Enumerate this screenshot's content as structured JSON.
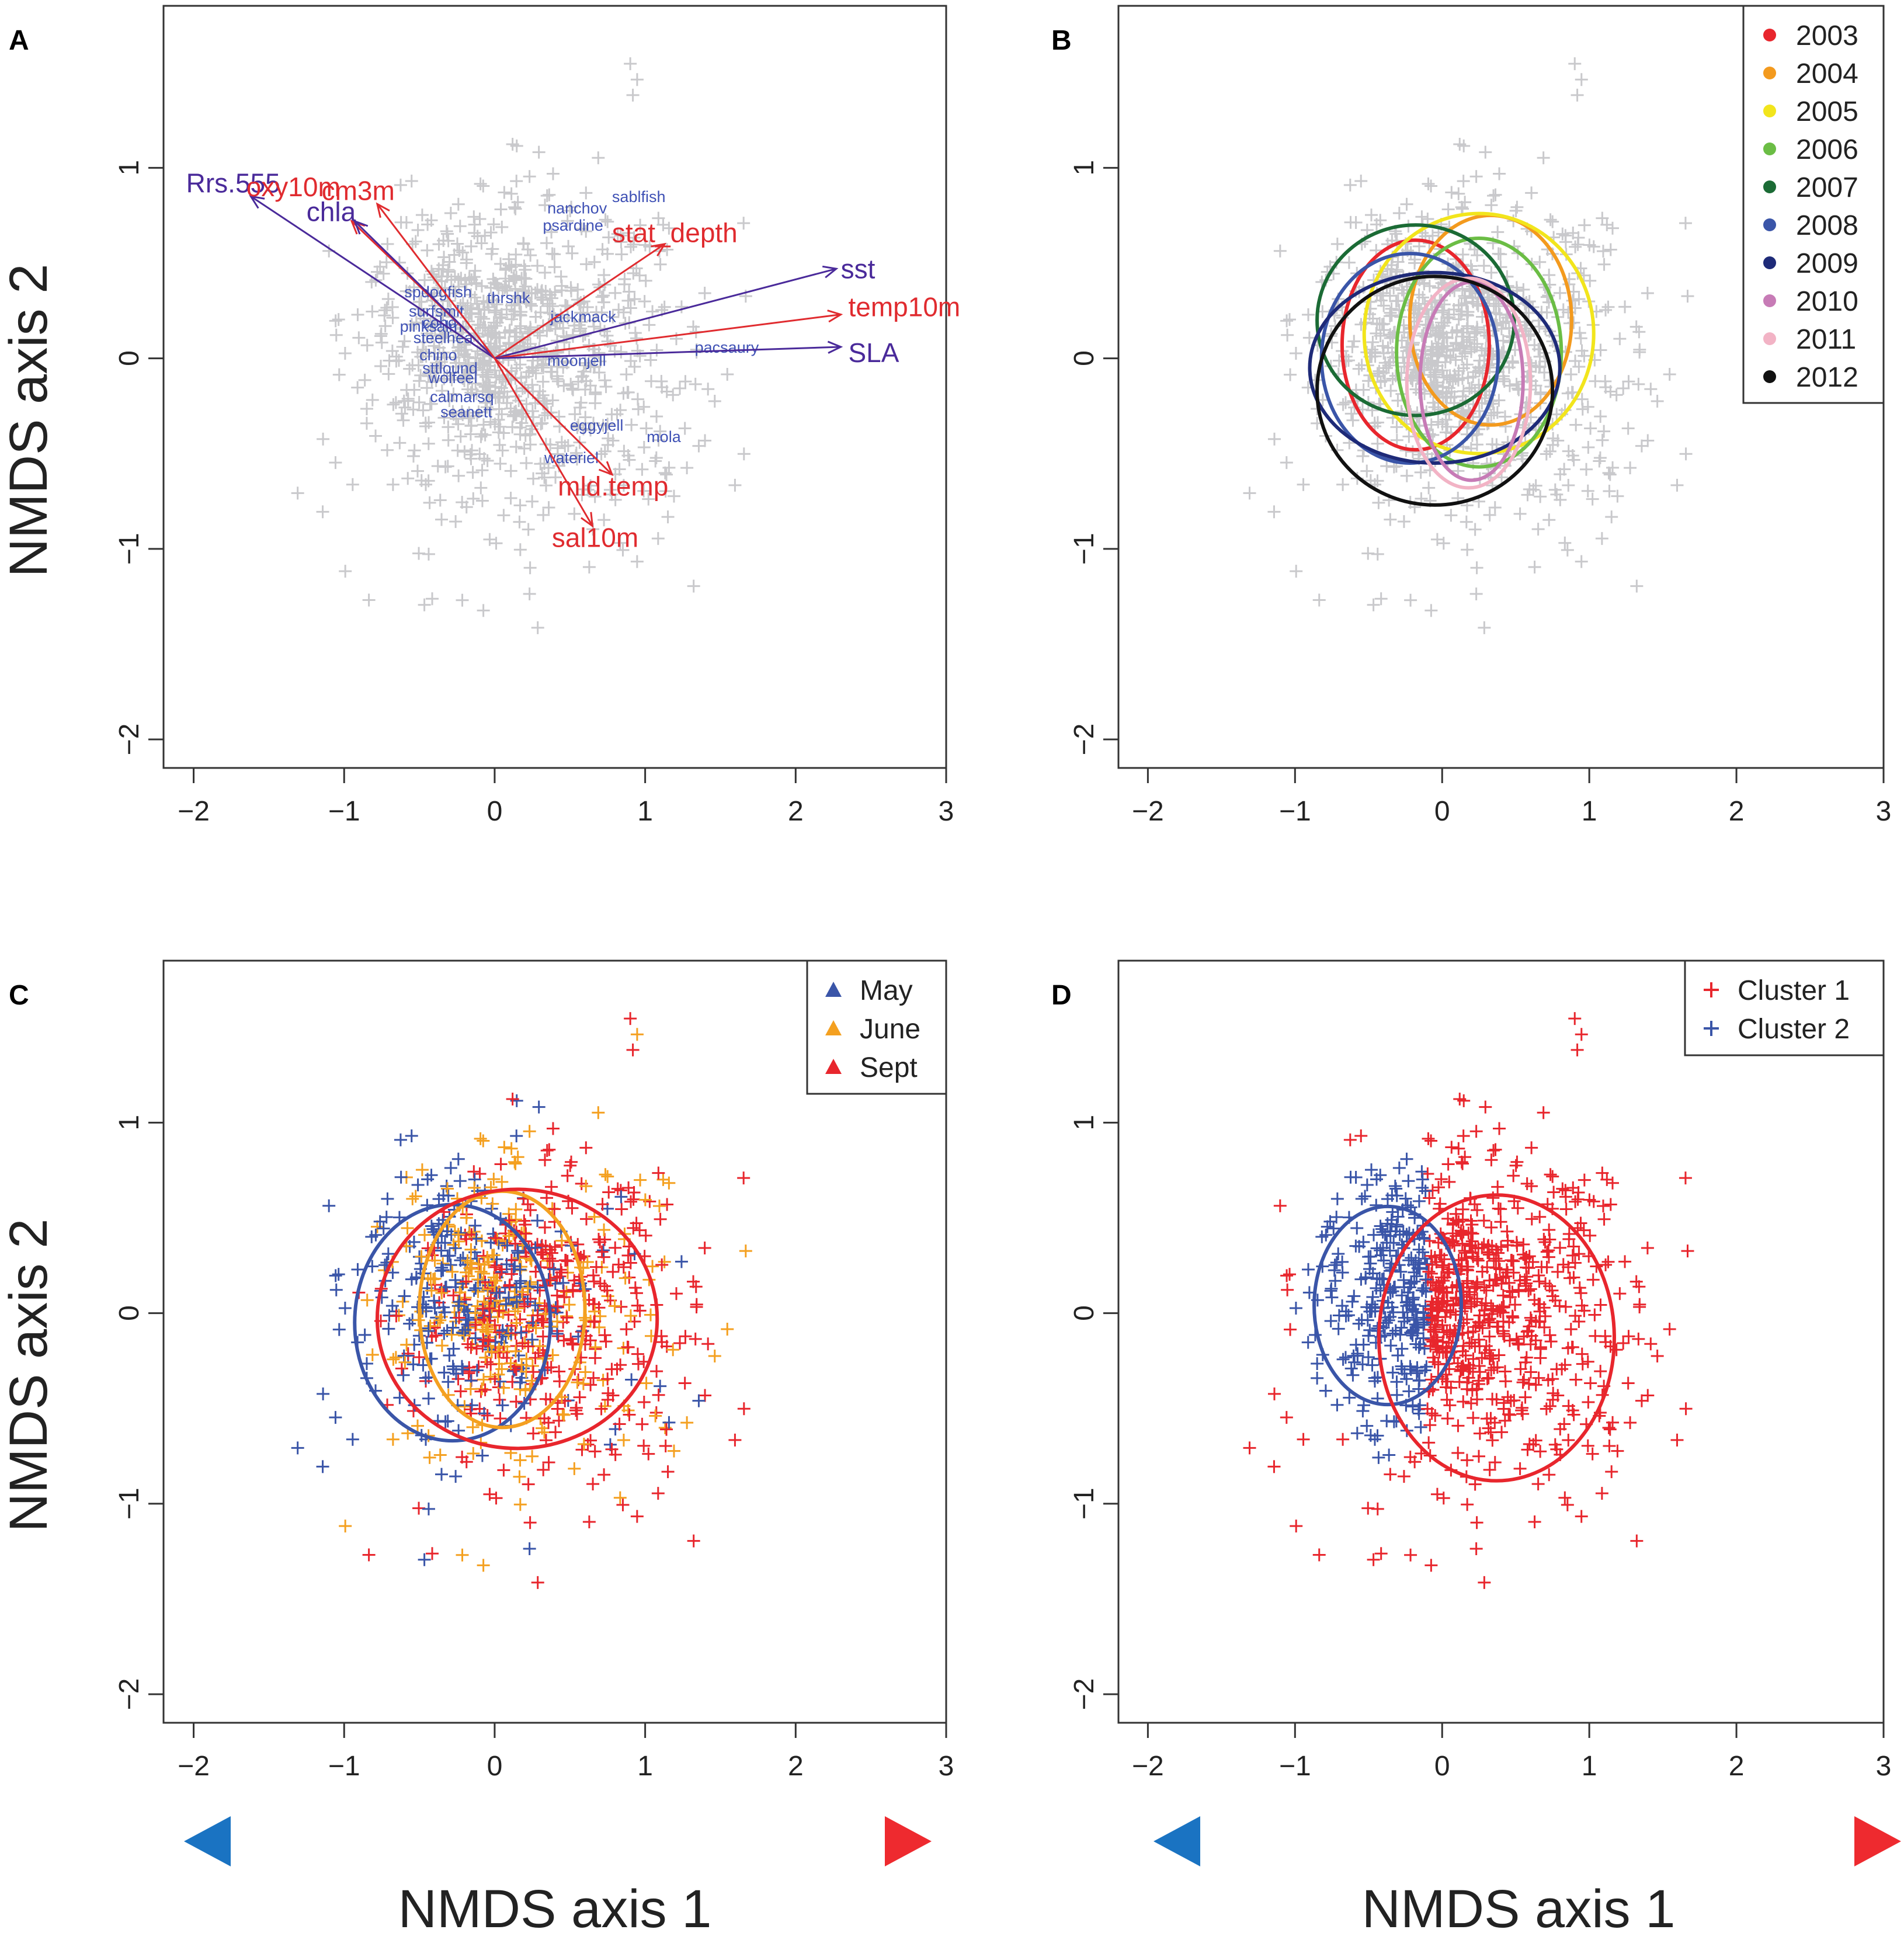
{
  "figure": {
    "ylabel": "NMDS axis 2",
    "xlabel": "NMDS axis 1"
  },
  "colors": {
    "gray_points": "#c9c9cc",
    "species": "#3f51b5",
    "env_red": "#e02b2f",
    "env_purple": "#4a2a9a",
    "red": "#e8262d",
    "blue": "#3a55a8",
    "orange": "#f4a020",
    "gradient_blue": "#1a73c2",
    "gradient_red": "#ee2a2f"
  },
  "chart_data": [
    {
      "panel": "A",
      "type": "scatter",
      "xlim": [
        -2.2,
        3.0
      ],
      "ylim": [
        -2.15,
        1.85
      ],
      "xticks": [
        -2,
        -1,
        0,
        1,
        2,
        3
      ],
      "yticks": [
        -2,
        -1,
        0,
        1
      ],
      "ylabel": "NMDS axis 2",
      "xlabel": "",
      "points": "site scores (gray crosses, ~900 points, centred near (0.2, 0.1))",
      "vectors": [
        {
          "name": "Rrs.555",
          "x": -1.62,
          "y": 0.85,
          "color": "purple",
          "lx": -2.05,
          "ly": 0.92
        },
        {
          "name": "oxy10m",
          "x": -0.95,
          "y": 0.72,
          "color": "red",
          "lx": -1.65,
          "ly": 0.9
        },
        {
          "name": "chla",
          "x": -0.93,
          "y": 0.72,
          "color": "purple",
          "lx": -1.25,
          "ly": 0.77
        },
        {
          "name": "cm3m",
          "x": -0.78,
          "y": 0.81,
          "color": "red",
          "lx": -1.15,
          "ly": 0.88
        },
        {
          "name": "stat_depth",
          "x": 1.13,
          "y": 0.6,
          "color": "red",
          "lx": 0.78,
          "ly": 0.66
        },
        {
          "name": "sst",
          "x": 2.27,
          "y": 0.47,
          "color": "purple",
          "lx": 2.3,
          "ly": 0.47
        },
        {
          "name": "temp10m",
          "x": 2.3,
          "y": 0.23,
          "color": "red",
          "lx": 2.35,
          "ly": 0.27
        },
        {
          "name": "SLA",
          "x": 2.3,
          "y": 0.06,
          "color": "purple",
          "lx": 2.35,
          "ly": 0.03
        },
        {
          "name": "mld.temp",
          "x": 0.78,
          "y": -0.61,
          "color": "red",
          "lx": 0.42,
          "ly": -0.67
        },
        {
          "name": "sal10m",
          "x": 0.65,
          "y": -0.88,
          "color": "red",
          "lx": 0.38,
          "ly": -0.94
        }
      ],
      "species": [
        {
          "name": "sablfish",
          "x": 0.78,
          "y": 0.82
        },
        {
          "name": "nanchov",
          "x": 0.35,
          "y": 0.76
        },
        {
          "name": "psardine",
          "x": 0.32,
          "y": 0.67
        },
        {
          "name": "jackmack",
          "x": 0.37,
          "y": 0.19
        },
        {
          "name": "pacsaury",
          "x": 1.33,
          "y": 0.03
        },
        {
          "name": "moonjell",
          "x": 0.35,
          "y": -0.04
        },
        {
          "name": "eggyjell",
          "x": 0.5,
          "y": -0.38
        },
        {
          "name": "mola",
          "x": 1.01,
          "y": -0.44
        },
        {
          "name": "wateriel",
          "x": 0.33,
          "y": -0.55
        },
        {
          "name": "spdogfish",
          "x": -0.6,
          "y": 0.32
        },
        {
          "name": "thrshk",
          "x": -0.05,
          "y": 0.29
        },
        {
          "name": "surfsmlt",
          "x": -0.57,
          "y": 0.22
        },
        {
          "name": "coho",
          "x": -0.48,
          "y": 0.16
        },
        {
          "name": "pinksalm",
          "x": -0.63,
          "y": 0.14
        },
        {
          "name": "steelhea",
          "x": -0.54,
          "y": 0.08
        },
        {
          "name": "chino",
          "x": -0.5,
          "y": -0.01
        },
        {
          "name": "sttlound",
          "x": -0.48,
          "y": -0.08
        },
        {
          "name": "wolfeel",
          "x": -0.44,
          "y": -0.13
        },
        {
          "name": "calmarsq",
          "x": -0.43,
          "y": -0.23
        },
        {
          "name": "seanett",
          "x": -0.36,
          "y": -0.31
        }
      ]
    },
    {
      "panel": "B",
      "type": "scatter",
      "xlim": [
        -2.2,
        3.0
      ],
      "ylim": [
        -2.15,
        1.85
      ],
      "xticks": [
        -2,
        -1,
        0,
        1,
        2,
        3
      ],
      "yticks": [
        -2,
        -1,
        0,
        1
      ],
      "xlabel": "",
      "ylabel": "",
      "legend": {
        "position": "top-right",
        "entries": [
          "2003",
          "2004",
          "2005",
          "2006",
          "2007",
          "2008",
          "2009",
          "2010",
          "2011",
          "2012"
        ]
      },
      "ellipses": [
        {
          "year": "2003",
          "color": "#e8262d",
          "cx": -0.18,
          "cy": 0.07,
          "rx": 0.5,
          "ry": 0.55
        },
        {
          "year": "2004",
          "color": "#f39a1e",
          "cx": 0.33,
          "cy": 0.2,
          "rx": 0.55,
          "ry": 0.55
        },
        {
          "year": "2005",
          "color": "#f2e51c",
          "cx": 0.25,
          "cy": 0.13,
          "rx": 0.78,
          "ry": 0.63
        },
        {
          "year": "2006",
          "color": "#6bbd45",
          "cx": 0.25,
          "cy": 0.03,
          "rx": 0.56,
          "ry": 0.6
        },
        {
          "year": "2007",
          "color": "#1b6b35",
          "cx": -0.18,
          "cy": 0.2,
          "rx": 0.67,
          "ry": 0.5
        },
        {
          "year": "2008",
          "color": "#3a55a8",
          "cx": -0.22,
          "cy": 0.0,
          "rx": 0.6,
          "ry": 0.55
        },
        {
          "year": "2009",
          "color": "#1e2a78",
          "cx": -0.05,
          "cy": -0.05,
          "rx": 0.85,
          "ry": 0.5
        },
        {
          "year": "2010",
          "color": "#c77bb6",
          "cx": 0.2,
          "cy": -0.12,
          "rx": 0.35,
          "ry": 0.52
        },
        {
          "year": "2011",
          "color": "#f2b3c5",
          "cx": 0.18,
          "cy": -0.13,
          "rx": 0.42,
          "ry": 0.55
        },
        {
          "year": "2012",
          "color": "#111111",
          "cx": -0.05,
          "cy": -0.17,
          "rx": 0.8,
          "ry": 0.6
        }
      ]
    },
    {
      "panel": "C",
      "type": "scatter",
      "xlim": [
        -2.2,
        3.0
      ],
      "ylim": [
        -2.15,
        1.85
      ],
      "xticks": [
        -2,
        -1,
        0,
        1,
        2,
        3
      ],
      "yticks": [
        -2,
        -1,
        0,
        1
      ],
      "xlabel": "NMDS axis 1",
      "ylabel": "NMDS axis 2",
      "legend": {
        "position": "top-right",
        "entries": [
          "May",
          "June",
          "Sept"
        ]
      },
      "series": [
        {
          "name": "May",
          "color": "#3a55a8",
          "cx": -0.33,
          "cy": -0.05,
          "sx": 0.42,
          "sy": 0.42
        },
        {
          "name": "June",
          "color": "#f4a020",
          "cx": 0.05,
          "cy": 0.1,
          "sx": 0.5,
          "sy": 0.48
        },
        {
          "name": "Sept",
          "color": "#e8262d",
          "cx": 0.35,
          "cy": -0.05,
          "sx": 0.55,
          "sy": 0.52
        }
      ],
      "ellipses": [
        {
          "name": "May",
          "color": "#3a55a8",
          "cx": -0.28,
          "cy": -0.05,
          "rx": 0.65,
          "ry": 0.62
        },
        {
          "name": "June",
          "color": "#f4a020",
          "cx": 0.05,
          "cy": 0.02,
          "rx": 0.55,
          "ry": 0.62
        },
        {
          "name": "Sept",
          "color": "#e8262d",
          "cx": 0.15,
          "cy": -0.03,
          "rx": 0.93,
          "ry": 0.68
        }
      ]
    },
    {
      "panel": "D",
      "type": "scatter",
      "xlim": [
        -2.2,
        3.0
      ],
      "ylim": [
        -2.15,
        1.85
      ],
      "xticks": [
        -2,
        -1,
        0,
        1,
        2,
        3
      ],
      "yticks": [
        -2,
        -1,
        0,
        1
      ],
      "xlabel": "NMDS axis 1",
      "ylabel": "",
      "legend": {
        "position": "top-right",
        "entries": [
          "Cluster 1",
          "Cluster 2"
        ]
      },
      "series": [
        {
          "name": "Cluster 1",
          "color": "#e8262d",
          "cx": 0.45,
          "cy": -0.05,
          "sx": 0.55,
          "sy": 0.55
        },
        {
          "name": "Cluster 2",
          "color": "#3a55a8",
          "cx": -0.35,
          "cy": 0.05,
          "sx": 0.3,
          "sy": 0.35
        }
      ],
      "ellipses": [
        {
          "name": "Cluster 2",
          "color": "#3a55a8",
          "cx": -0.37,
          "cy": 0.04,
          "rx": 0.5,
          "ry": 0.52
        },
        {
          "name": "Cluster 1",
          "color": "#e8262d",
          "cx": 0.37,
          "cy": -0.13,
          "rx": 0.8,
          "ry": 0.75
        }
      ]
    }
  ]
}
